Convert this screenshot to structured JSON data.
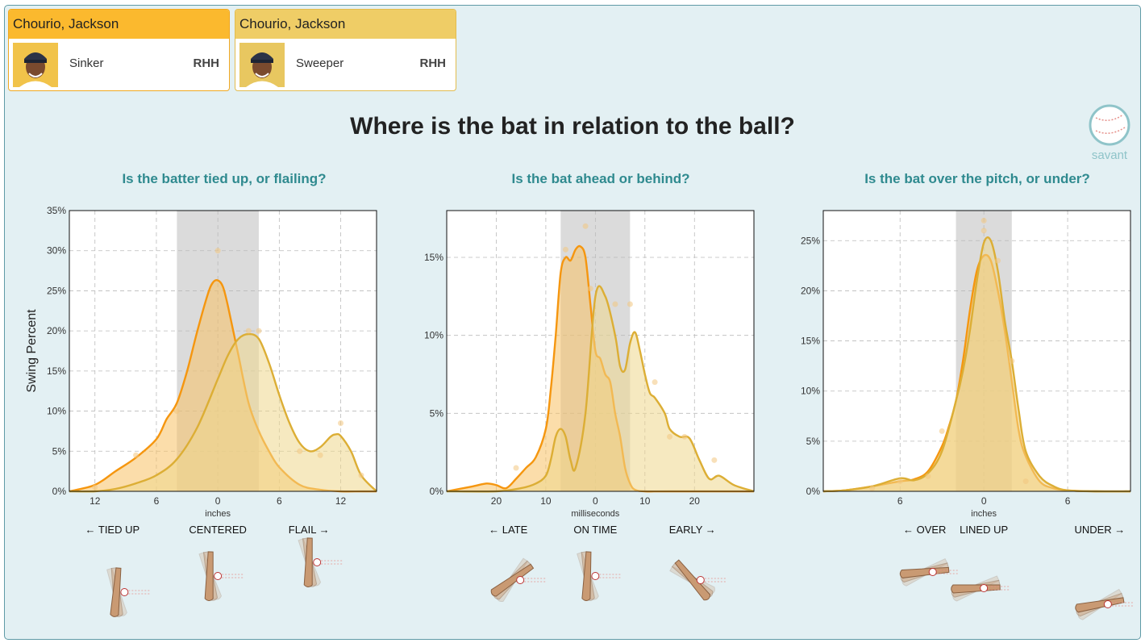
{
  "cards": [
    {
      "name": "Chourio, Jackson",
      "pitch": "Sinker",
      "hand": "RHH",
      "header_color": "#fbb92e",
      "border_color": "#f1a820"
    },
    {
      "name": "Chourio, Jackson",
      "pitch": "Sweeper",
      "hand": "RHH",
      "header_color": "#efcd66",
      "border_color": "#e2bc4f"
    }
  ],
  "page_title": "Where is the bat in relation to the ball?",
  "logo_text": "savant",
  "colors": {
    "series_sinker": "#f5960f",
    "series_sweeper": "#dcae35",
    "band": "#c8c8c8",
    "subtitle": "#2f8a8f"
  },
  "chart_data": [
    {
      "type": "area",
      "title": "Is the batter tied up, or flailing?",
      "ylabel": "Swing Percent",
      "xlabel": "inches",
      "xlim": [
        -14.5,
        15.5
      ],
      "ylim": [
        0,
        35
      ],
      "x_ticks": [
        -12,
        -6,
        0,
        6,
        12
      ],
      "x_tick_labels": [
        "12",
        "6",
        "0",
        "6",
        "12"
      ],
      "y_ticks": [
        0,
        5,
        10,
        15,
        20,
        25,
        30,
        35
      ],
      "y_tick_labels": [
        "0%",
        "5%",
        "10%",
        "15%",
        "20%",
        "25%",
        "30%",
        "35%"
      ],
      "shaded_band": [
        -4,
        4
      ],
      "direction_labels": [
        "← TIED UP",
        "CENTERED",
        "FLAIL →"
      ],
      "series": [
        {
          "name": "Sinker",
          "color": "#f5960f",
          "fill": "#f7c165",
          "x": [
            -14.5,
            -12,
            -10,
            -8,
            -6,
            -5,
            -4,
            -3,
            -2,
            -1,
            -0.5,
            0,
            0.5,
            1,
            2,
            3,
            4,
            5,
            6,
            8,
            10,
            12,
            14,
            15.5
          ],
          "y": [
            0,
            0.8,
            2.5,
            4.2,
            6.5,
            9,
            11,
            15,
            20,
            24.5,
            26,
            26.3,
            25.5,
            23,
            17,
            11,
            7.5,
            5,
            3,
            0.8,
            0.2,
            0,
            0,
            0
          ]
        },
        {
          "name": "Sweeper",
          "color": "#dcae35",
          "fill": "#efd78d",
          "x": [
            -14.5,
            -12,
            -10,
            -8,
            -6,
            -4,
            -2,
            0,
            1,
            2,
            3,
            4,
            5,
            6,
            7,
            8,
            9,
            10,
            11,
            11.5,
            12,
            13,
            14,
            15.5
          ],
          "y": [
            0,
            0,
            0.3,
            1,
            2,
            4,
            8,
            14,
            17,
            19,
            19.6,
            19,
            16,
            12,
            8.5,
            6,
            5,
            5.5,
            6.8,
            7.1,
            6.9,
            5,
            2,
            0
          ]
        }
      ],
      "points": [
        {
          "x": 0,
          "y": 30
        },
        {
          "x": -4,
          "y": 10
        },
        {
          "x": -8,
          "y": 4.5
        },
        {
          "x": 4,
          "y": 20
        },
        {
          "x": 3,
          "y": 20
        },
        {
          "x": 8,
          "y": 5
        },
        {
          "x": 12,
          "y": 8.5
        },
        {
          "x": 14,
          "y": 2
        },
        {
          "x": -12,
          "y": 0.5
        },
        {
          "x": 10,
          "y": 4.5
        }
      ]
    },
    {
      "type": "area",
      "title": "Is the bat ahead or behind?",
      "ylabel": "",
      "xlabel": "milliseconds",
      "xlim": [
        -30,
        32
      ],
      "ylim": [
        0,
        18
      ],
      "x_ticks": [
        -20,
        -10,
        0,
        10,
        20
      ],
      "x_tick_labels": [
        "20",
        "10",
        "0",
        "10",
        "20"
      ],
      "y_ticks": [
        0,
        5,
        10,
        15
      ],
      "y_tick_labels": [
        "0%",
        "5%",
        "10%",
        "15%"
      ],
      "shaded_band": [
        -7,
        7
      ],
      "direction_labels": [
        "← LATE",
        "ON TIME",
        "EARLY →"
      ],
      "series": [
        {
          "name": "Sinker",
          "color": "#f5960f",
          "fill": "#f7c165",
          "x": [
            -30,
            -25,
            -22,
            -20,
            -18,
            -16,
            -14,
            -12,
            -10,
            -9,
            -8,
            -7,
            -6,
            -5,
            -4,
            -3,
            -2,
            -1,
            0,
            1,
            2,
            3,
            4,
            5,
            6,
            7,
            8,
            10,
            15,
            32
          ],
          "y": [
            0,
            0.3,
            0.5,
            0.4,
            0.2,
            0.8,
            1.5,
            2.2,
            4,
            6.5,
            10,
            14,
            15,
            14.8,
            15.5,
            15.7,
            15,
            12,
            9,
            8.5,
            7.5,
            7,
            5,
            3.5,
            1.5,
            0.5,
            0.1,
            0,
            0,
            0
          ]
        },
        {
          "name": "Sweeper",
          "color": "#dcae35",
          "fill": "#efd78d",
          "x": [
            -30,
            -20,
            -15,
            -12,
            -10,
            -9,
            -8,
            -7,
            -6,
            -5,
            -4,
            -2,
            0,
            2,
            4,
            5,
            6,
            7,
            8,
            9,
            10,
            11,
            12,
            14,
            15,
            17,
            19,
            21,
            23,
            25,
            28,
            32
          ],
          "y": [
            0,
            0,
            0.2,
            0.5,
            1,
            2,
            3.5,
            4,
            3.5,
            2,
            1.5,
            5,
            12.5,
            12.5,
            10,
            8,
            7.8,
            9.5,
            10.2,
            9,
            7.5,
            6.3,
            6,
            5,
            4,
            3.5,
            3.4,
            2,
            0.8,
            1,
            0.4,
            0
          ]
        }
      ],
      "points": [
        {
          "x": -6,
          "y": 15.5
        },
        {
          "x": -2,
          "y": 17
        },
        {
          "x": -1,
          "y": 13
        },
        {
          "x": 4,
          "y": 12
        },
        {
          "x": 7,
          "y": 12
        },
        {
          "x": 12,
          "y": 7
        },
        {
          "x": 15,
          "y": 3.5
        },
        {
          "x": 18,
          "y": 3.5
        },
        {
          "x": 24,
          "y": 2
        },
        {
          "x": -16,
          "y": 1.5
        }
      ]
    },
    {
      "type": "area",
      "title": "Is the bat over the pitch, or under?",
      "ylabel": "",
      "xlabel": "inches",
      "xlim": [
        -11.5,
        10.5
      ],
      "ylim": [
        0,
        28
      ],
      "x_ticks": [
        -6,
        0,
        6
      ],
      "x_tick_labels": [
        "6",
        "0",
        "6"
      ],
      "y_ticks": [
        0,
        5,
        10,
        15,
        20,
        25
      ],
      "y_tick_labels": [
        "0%",
        "5%",
        "10%",
        "15%",
        "20%",
        "25%"
      ],
      "shaded_band": [
        -2,
        2
      ],
      "direction_labels": [
        "← OVER",
        "LINED UP",
        "UNDER →"
      ],
      "series": [
        {
          "name": "Sinker",
          "color": "#f5960f",
          "fill": "#f7c165",
          "x": [
            -11.5,
            -10,
            -8,
            -6,
            -5,
            -4,
            -3,
            -2.5,
            -2,
            -1.5,
            -1,
            -0.5,
            0,
            0.5,
            1,
            1.5,
            2,
            2.5,
            3,
            4,
            5,
            6,
            8,
            10.5
          ],
          "y": [
            0,
            0.1,
            0.5,
            1,
            1.2,
            2,
            4.5,
            6.5,
            9,
            13,
            18,
            22,
            23.5,
            23,
            20,
            16,
            11,
            6,
            3.5,
            1,
            0.3,
            0.1,
            0,
            0
          ]
        },
        {
          "name": "Sweeper",
          "color": "#dcae35",
          "fill": "#efd78d",
          "x": [
            -11.5,
            -10,
            -8,
            -6,
            -5,
            -4,
            -3,
            -2,
            -1.5,
            -1,
            -0.5,
            0,
            0.5,
            1,
            1.5,
            2,
            2.5,
            3,
            4,
            5,
            6,
            8,
            10.5
          ],
          "y": [
            0,
            0.1,
            0.5,
            1.3,
            1.1,
            1.8,
            4,
            9,
            12,
            16,
            21,
            24.8,
            25,
            22,
            17,
            13,
            8,
            4,
            1.5,
            0.5,
            0.1,
            0,
            0
          ]
        }
      ],
      "points": [
        {
          "x": 0,
          "y": 27
        },
        {
          "x": 0,
          "y": 26
        },
        {
          "x": 1,
          "y": 23
        },
        {
          "x": 2,
          "y": 13
        },
        {
          "x": -4,
          "y": 1.5
        },
        {
          "x": -6,
          "y": 1
        },
        {
          "x": -3,
          "y": 6
        },
        {
          "x": 3,
          "y": 1
        },
        {
          "x": -8,
          "y": 0.3
        }
      ]
    }
  ]
}
